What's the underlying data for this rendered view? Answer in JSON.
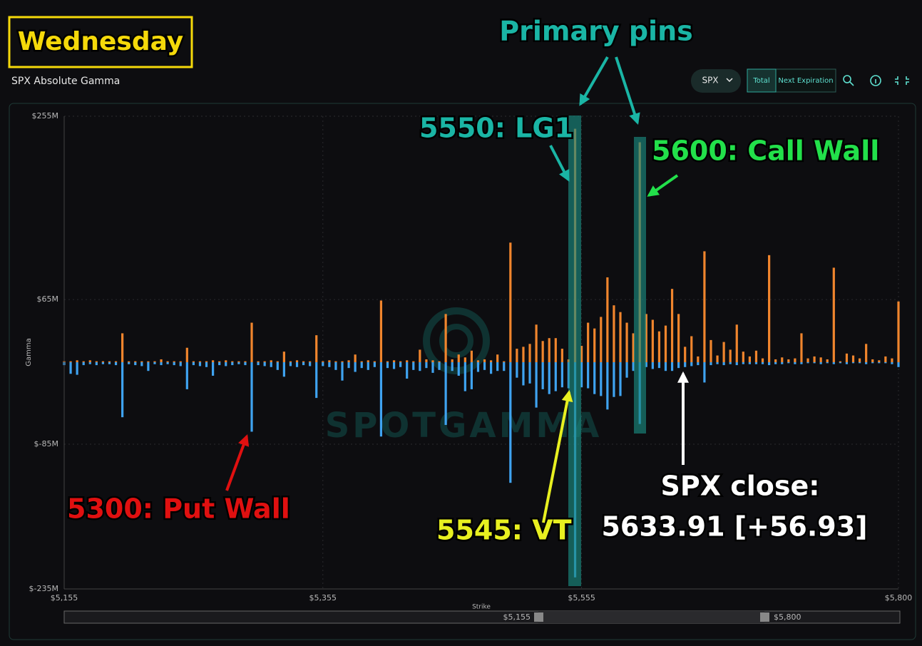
{
  "heading": "Wednesday",
  "controls": {
    "symbol": "SPX",
    "total": "Total",
    "next": "Next Expiration"
  },
  "annotations": {
    "pins": "Primary pins",
    "lg1": "5550: LG1",
    "call_wall": "5600: Call Wall",
    "put_wall": "5300: Put Wall",
    "vt": "5545: VT",
    "close_1": "SPX close:",
    "close_2": "5633.91 [+56.93]"
  },
  "watermark": "SPOTGAMMA",
  "chart_data": {
    "type": "bar",
    "title": "SPX Absolute Gamma",
    "x_label": "Strike",
    "y_label": "Gamma",
    "xlim": [
      5155,
      5800
    ],
    "xticks": [
      {
        "value": 5155,
        "label": "$5,155"
      },
      {
        "value": 5355,
        "label": "$5,355"
      },
      {
        "value": 5555,
        "label": "$5,555"
      },
      {
        "value": 5800,
        "label": "$5,800"
      }
    ],
    "ylim": [
      -235,
      255
    ],
    "yticks": [
      {
        "value": 255,
        "label": "$255M"
      },
      {
        "value": 65,
        "label": "$65M"
      },
      {
        "value": -85,
        "label": "$-85M"
      },
      {
        "value": -235,
        "label": "$-235M"
      }
    ],
    "grid": true,
    "x": [
      5155,
      5160,
      5165,
      5170,
      5175,
      5180,
      5185,
      5190,
      5195,
      5200,
      5205,
      5210,
      5215,
      5220,
      5225,
      5230,
      5235,
      5240,
      5245,
      5250,
      5255,
      5260,
      5265,
      5270,
      5275,
      5280,
      5285,
      5290,
      5295,
      5300,
      5305,
      5310,
      5315,
      5320,
      5325,
      5330,
      5335,
      5340,
      5345,
      5350,
      5355,
      5360,
      5365,
      5370,
      5375,
      5380,
      5385,
      5390,
      5395,
      5400,
      5405,
      5410,
      5415,
      5420,
      5425,
      5430,
      5435,
      5440,
      5445,
      5450,
      5455,
      5460,
      5465,
      5470,
      5475,
      5480,
      5485,
      5490,
      5495,
      5500,
      5505,
      5510,
      5515,
      5520,
      5525,
      5530,
      5535,
      5540,
      5545,
      5550,
      5555,
      5560,
      5565,
      5570,
      5575,
      5580,
      5585,
      5590,
      5595,
      5600,
      5605,
      5610,
      5615,
      5620,
      5625,
      5630,
      5635,
      5640,
      5645,
      5650,
      5655,
      5660,
      5665,
      5670,
      5675,
      5680,
      5685,
      5690,
      5695,
      5700,
      5705,
      5710,
      5715,
      5720,
      5725,
      5730,
      5735,
      5740,
      5745,
      5750,
      5755,
      5760,
      5765,
      5770,
      5775,
      5780,
      5785,
      5790,
      5795,
      5800
    ],
    "series": [
      {
        "color": "#f0852d",
        "values": [
          1,
          1,
          2,
          1,
          2,
          1,
          1,
          1,
          1,
          30,
          1,
          1,
          1,
          1,
          1,
          3,
          1,
          1,
          1,
          15,
          1,
          1,
          1,
          2,
          1,
          2,
          1,
          1,
          1,
          41,
          1,
          1,
          2,
          1,
          11,
          1,
          2,
          1,
          1,
          28,
          1,
          2,
          1,
          1,
          2,
          8,
          1,
          2,
          1,
          64,
          1,
          2,
          1,
          2,
          1,
          13,
          3,
          2,
          1,
          50,
          3,
          8,
          5,
          12,
          2,
          3,
          2,
          8,
          1,
          124,
          14,
          16,
          19,
          39,
          22,
          25,
          25,
          14,
          3,
          242,
          17,
          41,
          35,
          47,
          88,
          59,
          52,
          41,
          30,
          228,
          50,
          44,
          32,
          38,
          76,
          50,
          16,
          27,
          6,
          115,
          23,
          7,
          21,
          13,
          39,
          11,
          6,
          12,
          4,
          111,
          3,
          5,
          3,
          4,
          30,
          4,
          6,
          5,
          3,
          98,
          1,
          9,
          7,
          4,
          19,
          3,
          2,
          6,
          4,
          63
        ]
      },
      {
        "color": "#3fa3f0",
        "values": [
          -3,
          -12,
          -13,
          -3,
          -2,
          -3,
          -2,
          -2,
          -3,
          -57,
          -2,
          -3,
          -4,
          -9,
          -2,
          -3,
          -2,
          -3,
          -4,
          -28,
          -3,
          -4,
          -5,
          -14,
          -3,
          -4,
          -3,
          -2,
          -3,
          -72,
          -3,
          -4,
          -5,
          -8,
          -15,
          -4,
          -5,
          -3,
          -4,
          -37,
          -4,
          -5,
          -8,
          -19,
          -6,
          -10,
          -6,
          -8,
          -5,
          -77,
          -6,
          -7,
          -5,
          -17,
          -8,
          -9,
          -6,
          -11,
          -8,
          -65,
          -9,
          -14,
          -30,
          -28,
          -10,
          -8,
          -12,
          -9,
          -9,
          -125,
          -16,
          -24,
          -22,
          -47,
          -28,
          -33,
          -30,
          -26,
          -27,
          -223,
          -26,
          -27,
          -33,
          -35,
          -49,
          -36,
          -35,
          -16,
          -9,
          -64,
          -5,
          -7,
          -6,
          -9,
          -9,
          -6,
          -5,
          -4,
          -3,
          -21,
          -3,
          -2,
          -3,
          -2,
          -3,
          -2,
          -2,
          -2,
          -2,
          -3,
          -2,
          -2,
          -1,
          -2,
          -2,
          -1,
          -1,
          -2,
          -1,
          -2,
          -1,
          -2,
          -1,
          -1,
          -2,
          -1,
          -1,
          -1,
          -2,
          -5
        ]
      }
    ]
  }
}
